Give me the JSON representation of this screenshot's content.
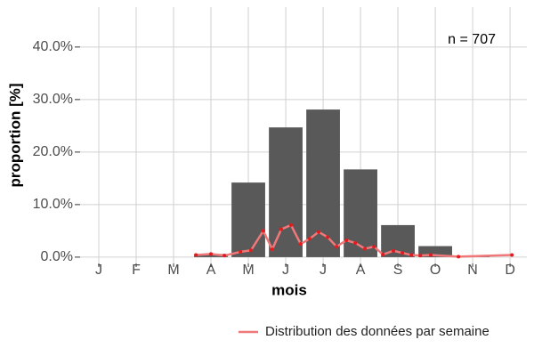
{
  "chart_data": {
    "type": "bar",
    "annotation": "n = 707",
    "x_label": "mois",
    "y_label": "proportion [%]",
    "categories": [
      "J",
      "F",
      "M",
      "A",
      "M",
      "J",
      "J",
      "A",
      "S",
      "O",
      "N",
      "D"
    ],
    "values": [
      0,
      0,
      0,
      0.6,
      14.2,
      24.7,
      28.1,
      16.7,
      6.1,
      2.1,
      0.1,
      0
    ],
    "color": "#595959",
    "xlim": [
      0.5,
      12.45
    ],
    "ylim": [
      -1.2,
      47.6
    ],
    "yticks": [
      {
        "value": 0,
        "label": "0.0%"
      },
      {
        "value": 10,
        "label": "10.0%"
      },
      {
        "value": 20,
        "label": "20.0%"
      },
      {
        "value": 30,
        "label": "30.0%"
      },
      {
        "value": 40,
        "label": "40.0%"
      }
    ],
    "grid": true,
    "legend": "bottom-right",
    "line": {
      "name": "Distribution des données par semaine",
      "color": "#f0787a",
      "marker_color": "#e41a1c",
      "x": [
        3.6,
        4.0,
        4.36,
        4.79,
        5.07,
        5.4,
        5.64,
        5.88,
        6.14,
        6.4,
        6.64,
        6.88,
        7.12,
        7.36,
        7.62,
        7.86,
        8.12,
        8.36,
        8.6,
        8.88,
        9.12,
        9.36,
        9.6,
        9.88,
        10.62,
        12.05
      ],
      "values": [
        0.4,
        0.6,
        0.3,
        1.0,
        1.3,
        5.0,
        1.5,
        5.3,
        6.1,
        2.5,
        3.5,
        4.8,
        3.8,
        2.0,
        3.2,
        2.7,
        1.6,
        2.0,
        0.5,
        1.2,
        0.8,
        0.4,
        0.3,
        0.4,
        0.1,
        0.4
      ]
    }
  }
}
